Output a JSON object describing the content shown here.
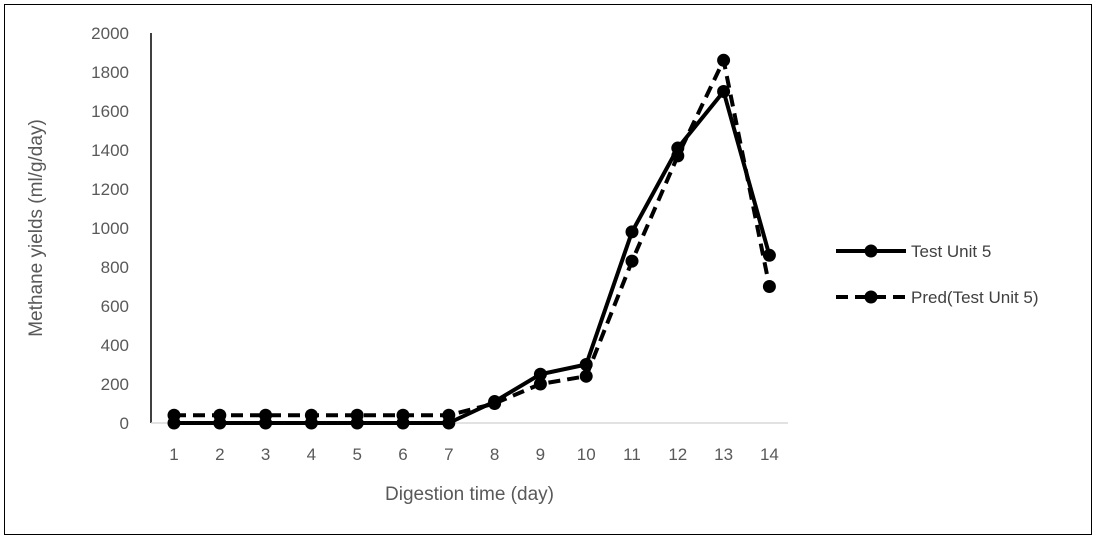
{
  "chart_data": {
    "type": "line",
    "title": "",
    "xlabel": "Digestion time (day)",
    "ylabel": "Methane yields (ml/g/day)",
    "categories": [
      "1",
      "2",
      "3",
      "4",
      "5",
      "6",
      "7",
      "8",
      "9",
      "10",
      "11",
      "12",
      "13",
      "14"
    ],
    "ylim": [
      0,
      2000
    ],
    "yticks": [
      0,
      200,
      400,
      600,
      800,
      1000,
      1200,
      1400,
      1600,
      1800,
      2000
    ],
    "grid": false,
    "legend_position": "right",
    "series": [
      {
        "name": "Test Unit 5",
        "style": "solid",
        "color": "#000000",
        "values": [
          0,
          0,
          0,
          0,
          0,
          0,
          0,
          110,
          250,
          300,
          980,
          1410,
          1700,
          860
        ]
      },
      {
        "name": "Pred(Test Unit 5)",
        "style": "dashed",
        "color": "#000000",
        "values": [
          40,
          40,
          40,
          40,
          40,
          40,
          40,
          100,
          200,
          240,
          830,
          1370,
          1860,
          700
        ]
      }
    ]
  }
}
